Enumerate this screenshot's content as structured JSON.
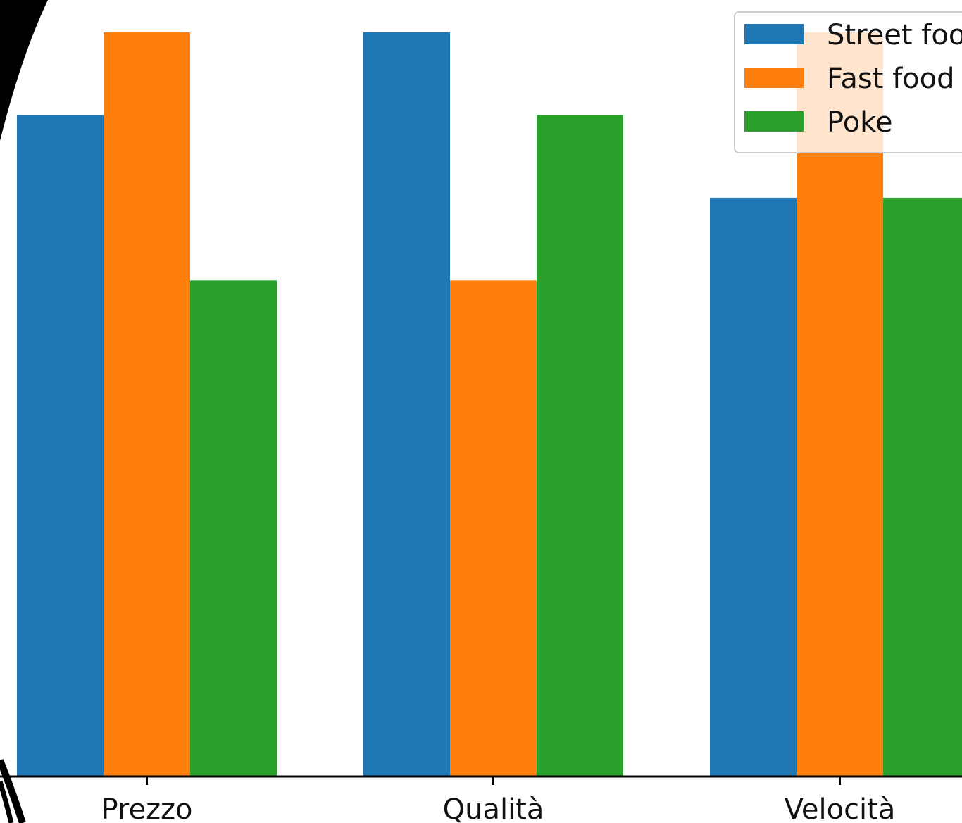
{
  "chart_data": {
    "type": "bar",
    "categories": [
      "Prezzo",
      "Qualità",
      "Velocità"
    ],
    "series": [
      {
        "name": "Street food",
        "values": [
          4,
          4.5,
          3.5
        ],
        "color": "#1f77b4"
      },
      {
        "name": "Fast food",
        "values": [
          4.5,
          3,
          4.5
        ],
        "color": "#ff7f0e"
      },
      {
        "name": "Poke",
        "values": [
          3,
          4,
          3.5
        ],
        "color": "#2ca02c"
      }
    ],
    "ylim": [
      0,
      4.5
    ],
    "grid": false,
    "legend_position": "top-right",
    "title": "",
    "xlabel": "",
    "ylabel": ""
  }
}
